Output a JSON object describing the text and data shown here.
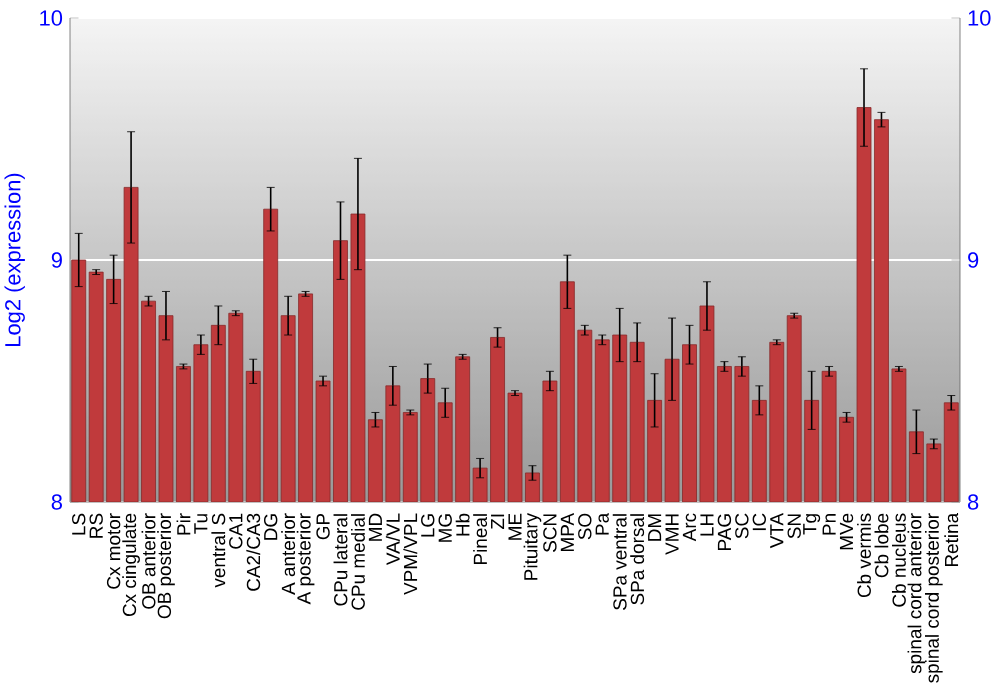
{
  "chart_data": {
    "type": "bar",
    "ylabel": "Log2 (expression)",
    "categories": [
      "LS",
      "RS",
      "Cx motor",
      "Cx cingulate",
      "OB anterior",
      "OB posterior",
      "Pir",
      "Tu",
      "ventral S",
      "CA1",
      "CA2/CA3",
      "DG",
      "A anterior",
      "A posterior",
      "GP",
      "CPu lateral",
      "CPu medial",
      "MD",
      "VA/VL",
      "VPM/VPL",
      "LG",
      "MG",
      "Hb",
      "Pineal",
      "ZI",
      "ME",
      "Pituitary",
      "SCN",
      "MPA",
      "SO",
      "Pa",
      "SPa ventral",
      "SPa dorsal",
      "DM",
      "VMH",
      "Arc",
      "LH",
      "PAG",
      "SC",
      "IC",
      "VTA",
      "SN",
      "Tg",
      "Pn",
      "MVe",
      "Cb vermis",
      "Cb lobe",
      "Cb nucleus",
      "spinal cord anterior",
      "spinal cord posterior",
      "Retina"
    ],
    "values": [
      9.0,
      8.95,
      8.92,
      9.3,
      8.83,
      8.77,
      8.56,
      8.65,
      8.73,
      8.78,
      8.54,
      9.21,
      8.77,
      8.86,
      8.5,
      9.08,
      9.19,
      8.34,
      8.48,
      8.37,
      8.51,
      8.41,
      8.6,
      8.14,
      8.68,
      8.45,
      8.12,
      8.5,
      8.91,
      8.71,
      8.67,
      8.69,
      8.66,
      8.42,
      8.59,
      8.65,
      8.81,
      8.56,
      8.56,
      8.42,
      8.66,
      8.77,
      8.42,
      8.54,
      8.35,
      9.63,
      9.58,
      8.55,
      8.29,
      8.24,
      8.41
    ],
    "errors": [
      0.11,
      0.01,
      0.1,
      0.23,
      0.02,
      0.1,
      0.01,
      0.04,
      0.08,
      0.01,
      0.05,
      0.09,
      0.08,
      0.01,
      0.02,
      0.16,
      0.23,
      0.03,
      0.08,
      0.01,
      0.06,
      0.06,
      0.01,
      0.04,
      0.04,
      0.01,
      0.03,
      0.04,
      0.11,
      0.02,
      0.02,
      0.11,
      0.08,
      0.11,
      0.17,
      0.08,
      0.1,
      0.02,
      0.04,
      0.06,
      0.01,
      0.01,
      0.12,
      0.02,
      0.02,
      0.16,
      0.03,
      0.01,
      0.09,
      0.02,
      0.03
    ],
    "color": "#c03a3c",
    "ylim": [
      8,
      10
    ],
    "yticks": [
      8,
      9,
      10
    ],
    "y2lim": [
      8,
      10
    ],
    "y2ticks": [
      8,
      9,
      10
    ],
    "grid": "y"
  }
}
